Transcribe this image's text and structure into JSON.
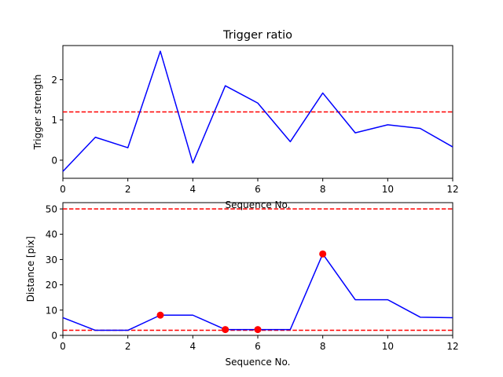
{
  "chart_data": [
    {
      "type": "line",
      "title": "Trigger ratio",
      "xlabel": "Sequence No.",
      "ylabel": "Trigger strength",
      "xlim": [
        0,
        12
      ],
      "ylim": [
        -0.45,
        2.85
      ],
      "xticks": [
        0,
        2,
        4,
        6,
        8,
        10,
        12
      ],
      "yticks": [
        0,
        1,
        2
      ],
      "grid": false,
      "series": [
        {
          "color": "#0000ff",
          "x": [
            0,
            1,
            2,
            3,
            4,
            5,
            6,
            7,
            8,
            9,
            10,
            11,
            12
          ],
          "values": [
            -0.28,
            0.57,
            0.31,
            2.71,
            -0.07,
            1.85,
            1.42,
            0.46,
            1.67,
            0.68,
            0.88,
            0.79,
            0.33
          ]
        }
      ],
      "hlines": [
        {
          "y": 1.2,
          "color": "#ff0000",
          "style": "dashed"
        }
      ]
    },
    {
      "type": "line",
      "title": "",
      "xlabel": "Sequence No.",
      "ylabel": "Distance [pix]",
      "xlim": [
        0,
        12
      ],
      "ylim": [
        0,
        52.5
      ],
      "xticks": [
        0,
        2,
        4,
        6,
        8,
        10,
        12
      ],
      "yticks": [
        0,
        10,
        20,
        30,
        40,
        50
      ],
      "grid": false,
      "series": [
        {
          "color": "#0000ff",
          "x": [
            0,
            1,
            2,
            3,
            4,
            5,
            6,
            7,
            8,
            9,
            10,
            11,
            12
          ],
          "values": [
            7,
            2,
            2,
            8,
            8,
            2.3,
            2.3,
            2.3,
            32.2,
            14.1,
            14.1,
            7.2,
            7
          ]
        }
      ],
      "markers": {
        "color": "#ff0000",
        "x": [
          3,
          5,
          6,
          8
        ],
        "values": [
          8,
          2.3,
          2.3,
          32.2
        ]
      },
      "hlines": [
        {
          "y": 50,
          "color": "#ff0000",
          "style": "dashed"
        },
        {
          "y": 2,
          "color": "#ff0000",
          "style": "dashed"
        }
      ]
    }
  ]
}
